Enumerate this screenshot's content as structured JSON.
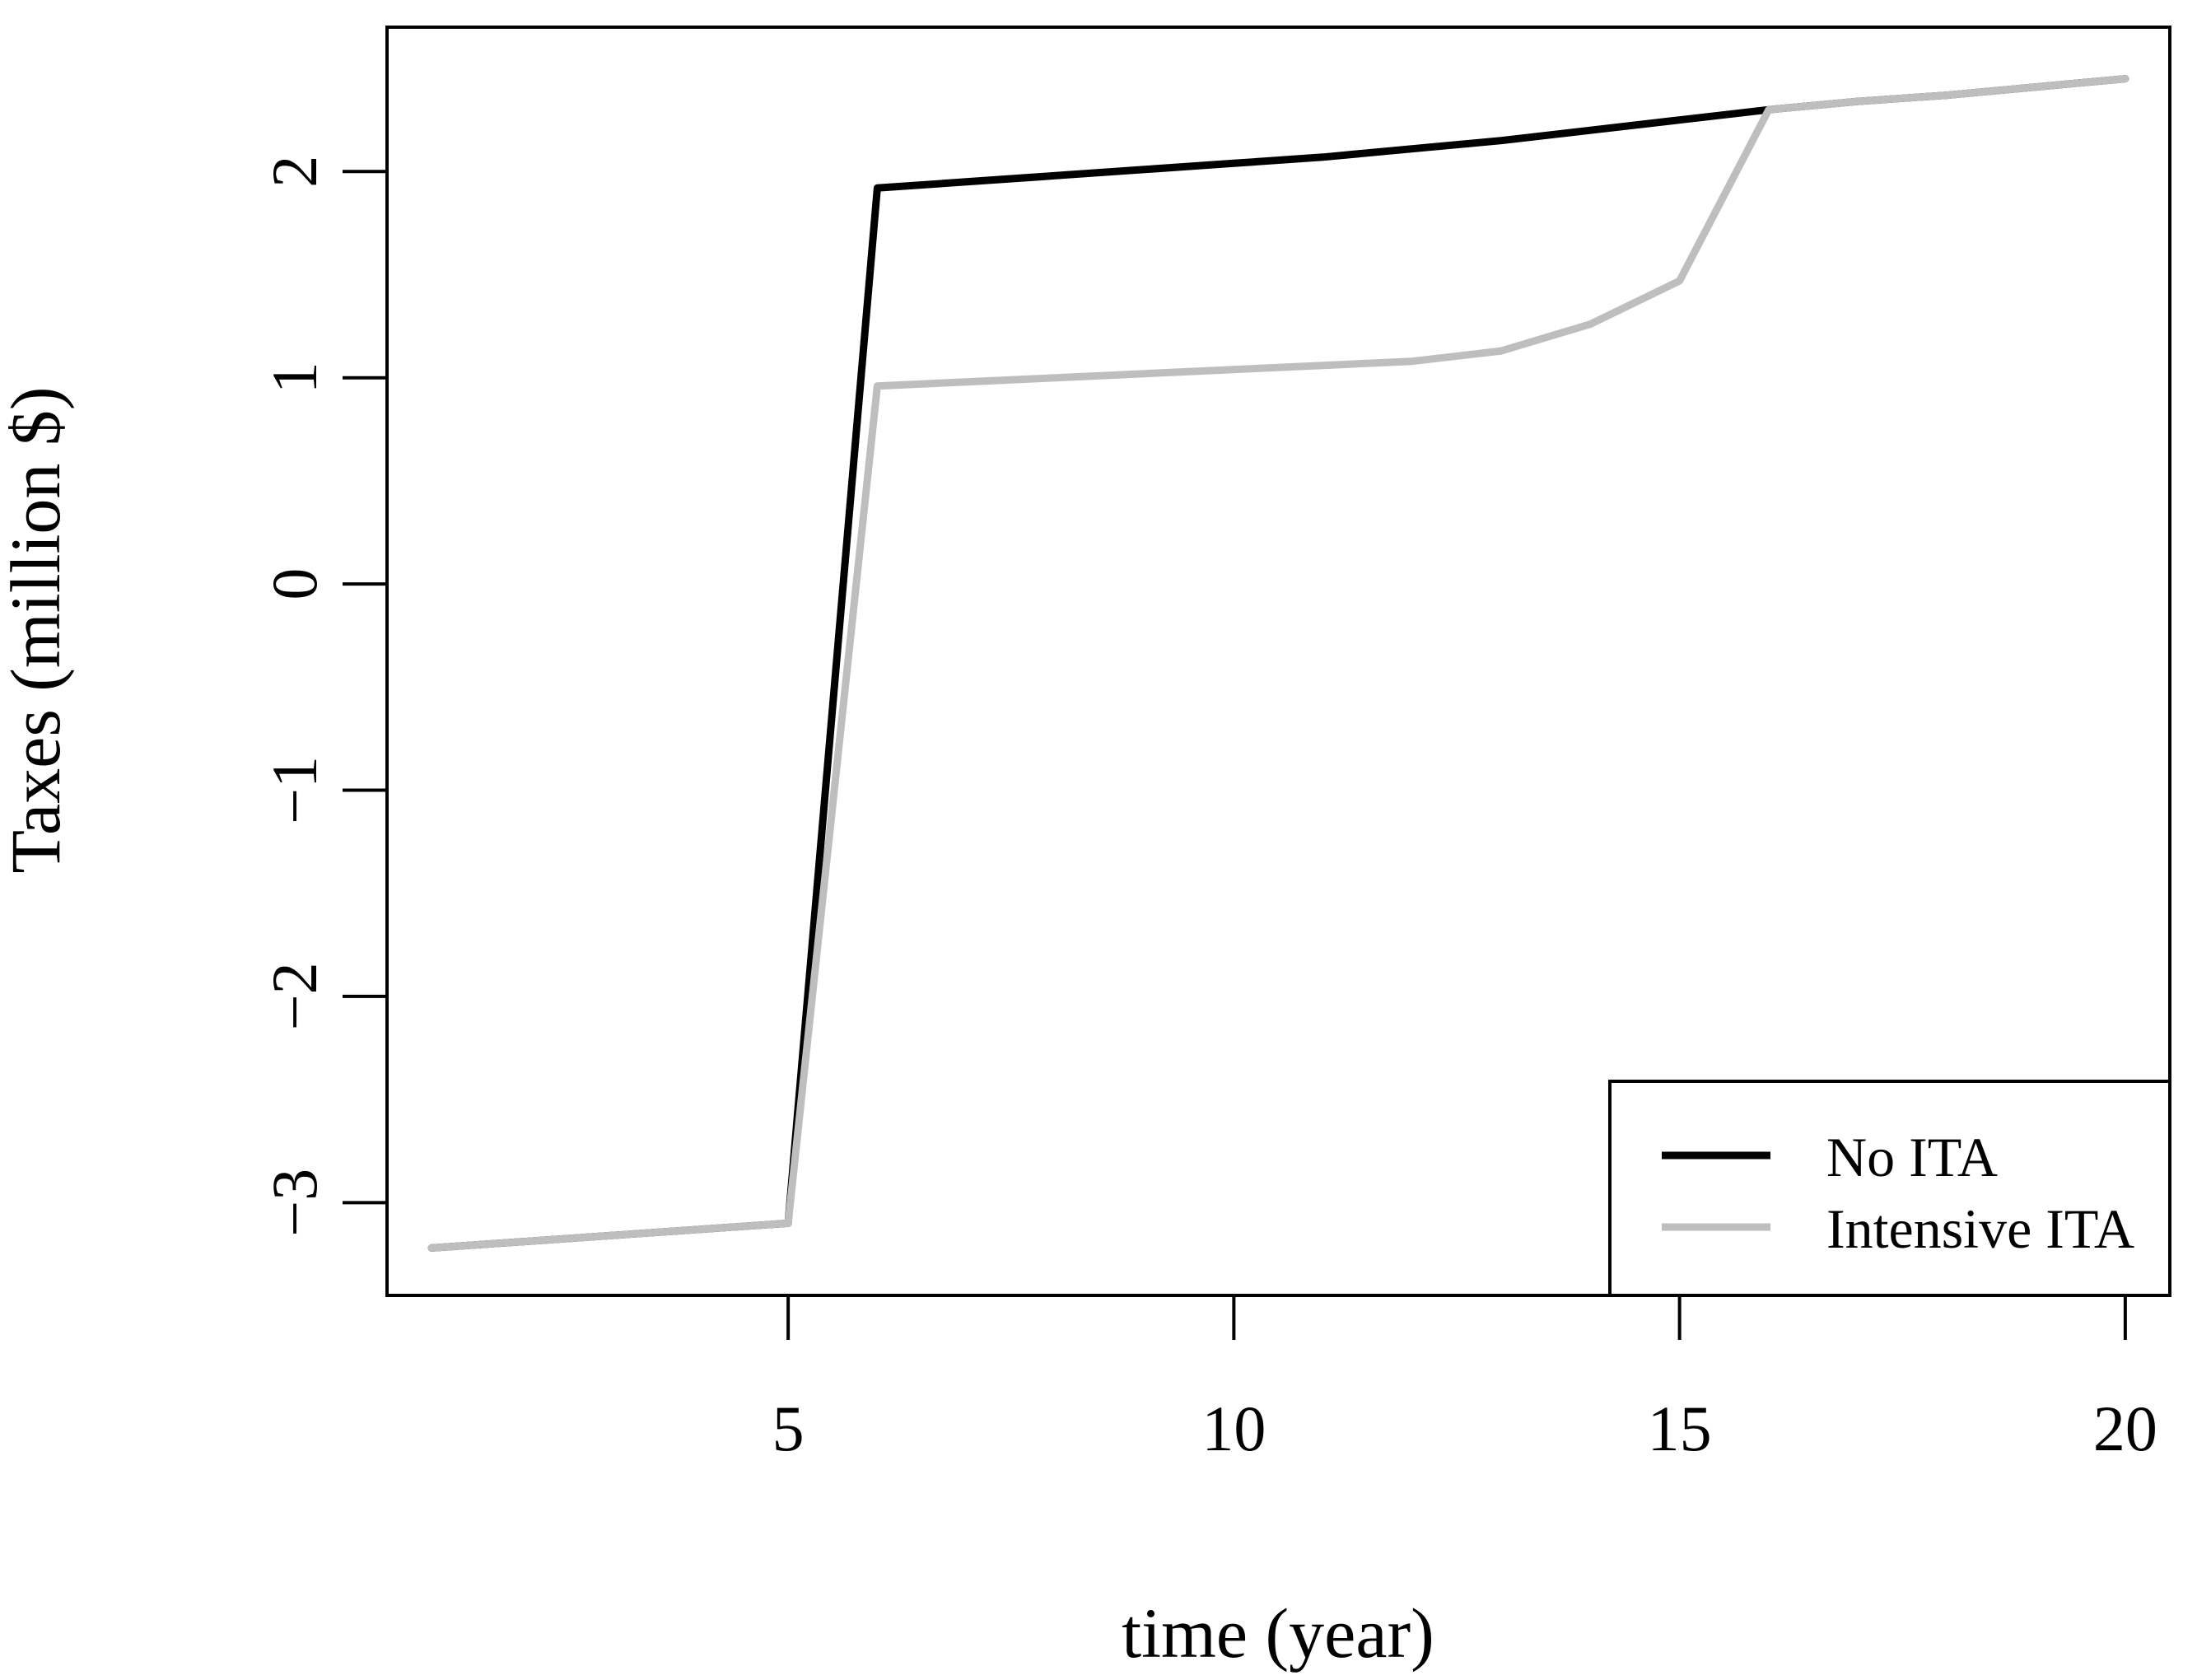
{
  "chart_data": {
    "type": "line",
    "title": "",
    "xlabel": "time (year)",
    "ylabel": "Taxes (million $)",
    "xlim": [
      0.5,
      20.5
    ],
    "ylim": [
      -3.45,
      2.7
    ],
    "x_ticks": [
      5,
      10,
      15,
      20
    ],
    "x_tick_labels": [
      "5",
      "10",
      "15",
      "20"
    ],
    "y_ticks": [
      -3,
      -2,
      -1,
      0,
      1,
      2
    ],
    "y_tick_labels": [
      "−3",
      "−2",
      "−1",
      "0",
      "1",
      "2"
    ],
    "grid": false,
    "legend_position": "bottom-right",
    "x": [
      1,
      2,
      3,
      4,
      5,
      6,
      7,
      8,
      9,
      10,
      11,
      12,
      13,
      14,
      15,
      16,
      17,
      18,
      19,
      20
    ],
    "series": [
      {
        "name": "No ITA",
        "color": "#000000",
        "values": [
          -3.22,
          -3.19,
          -3.16,
          -3.13,
          -3.1,
          1.92,
          1.95,
          1.98,
          2.01,
          2.04,
          2.07,
          2.11,
          2.15,
          2.2,
          2.25,
          2.3,
          2.34,
          2.37,
          2.41,
          2.45
        ]
      },
      {
        "name": "Intensive ITA",
        "color": "#bebebe",
        "values": [
          -3.22,
          -3.19,
          -3.16,
          -3.13,
          -3.1,
          0.96,
          0.98,
          1.0,
          1.02,
          1.04,
          1.06,
          1.08,
          1.13,
          1.26,
          1.47,
          2.3,
          2.34,
          2.37,
          2.41,
          2.45
        ]
      }
    ]
  }
}
